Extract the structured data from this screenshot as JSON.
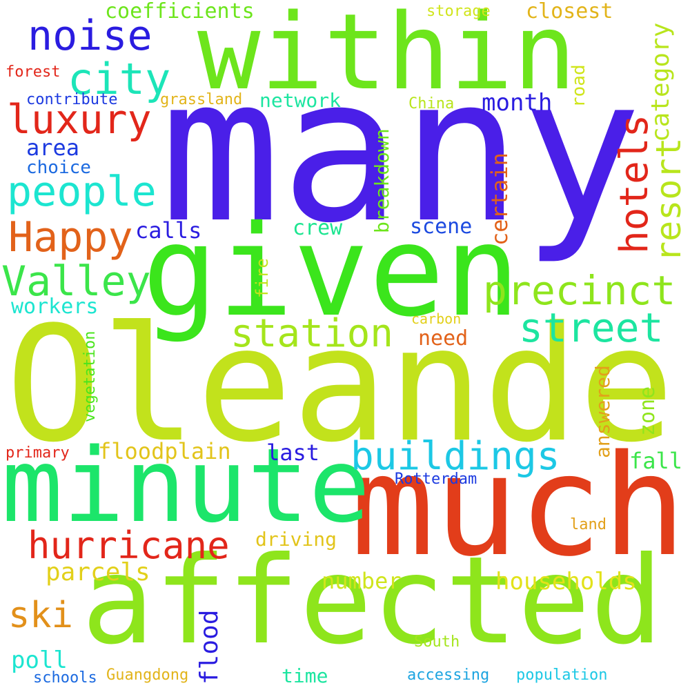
{
  "words": [
    {
      "text": "many",
      "color": "#4a1fe8",
      "orientation": "horizontal"
    },
    {
      "text": "Oleander",
      "color": "#c2e21c",
      "orientation": "horizontal"
    },
    {
      "text": "affected",
      "color": "#8ee51c",
      "orientation": "horizontal"
    },
    {
      "text": "much",
      "color": "#e23d1a",
      "orientation": "horizontal"
    },
    {
      "text": "within",
      "color": "#6de51c",
      "orientation": "horizontal"
    },
    {
      "text": "given",
      "color": "#3be51c",
      "orientation": "horizontal"
    },
    {
      "text": "minute",
      "color": "#1ce56a",
      "orientation": "horizontal"
    },
    {
      "text": "noise",
      "color": "#2a1ce0",
      "orientation": "horizontal"
    },
    {
      "text": "luxury",
      "color": "#e2261a",
      "orientation": "horizontal"
    },
    {
      "text": "city",
      "color": "#1ce5b8",
      "orientation": "horizontal"
    },
    {
      "text": "people",
      "color": "#1ce5d0",
      "orientation": "horizontal"
    },
    {
      "text": "Happy",
      "color": "#e2621a",
      "orientation": "horizontal"
    },
    {
      "text": "Valley",
      "color": "#3be54a",
      "orientation": "horizontal"
    },
    {
      "text": "hotels",
      "color": "#e2261a",
      "orientation": "vertical"
    },
    {
      "text": "resort",
      "color": "#b8e51c",
      "orientation": "vertical"
    },
    {
      "text": "precinct",
      "color": "#8ee51c",
      "orientation": "horizontal"
    },
    {
      "text": "station",
      "color": "#a4e51c",
      "orientation": "horizontal"
    },
    {
      "text": "street",
      "color": "#1ce5a0",
      "orientation": "horizontal"
    },
    {
      "text": "buildings",
      "color": "#1cc8e5",
      "orientation": "horizontal"
    },
    {
      "text": "hurricane",
      "color": "#e2261a",
      "orientation": "horizontal"
    },
    {
      "text": "category",
      "color": "#b8e51c",
      "orientation": "vertical"
    },
    {
      "text": "coefficients",
      "color": "#6de51c",
      "orientation": "horizontal"
    },
    {
      "text": "closest",
      "color": "#e2b41a",
      "orientation": "horizontal"
    },
    {
      "text": "storage",
      "color": "#d0e51c",
      "orientation": "horizontal"
    },
    {
      "text": "forest",
      "color": "#e2261a",
      "orientation": "horizontal"
    },
    {
      "text": "contribute",
      "color": "#1c3ae0",
      "orientation": "horizontal"
    },
    {
      "text": "grassland",
      "color": "#e2b41a",
      "orientation": "horizontal"
    },
    {
      "text": "network",
      "color": "#1ce5a0",
      "orientation": "horizontal"
    },
    {
      "text": "China",
      "color": "#b8e51c",
      "orientation": "horizontal"
    },
    {
      "text": "month",
      "color": "#2a1ce0",
      "orientation": "horizontal"
    },
    {
      "text": "road",
      "color": "#d0e51c",
      "orientation": "vertical"
    },
    {
      "text": "area",
      "color": "#1c3ae0",
      "orientation": "horizontal"
    },
    {
      "text": "choice",
      "color": "#1c6ae0",
      "orientation": "horizontal"
    },
    {
      "text": "breakdown",
      "color": "#6de51c",
      "orientation": "vertical"
    },
    {
      "text": "certain",
      "color": "#e2621a",
      "orientation": "vertical"
    },
    {
      "text": "calls",
      "color": "#2a1ce0",
      "orientation": "horizontal"
    },
    {
      "text": "crew",
      "color": "#1ce590",
      "orientation": "horizontal"
    },
    {
      "text": "scene",
      "color": "#1c4ae0",
      "orientation": "horizontal"
    },
    {
      "text": "workers",
      "color": "#1ce5d0",
      "orientation": "horizontal"
    },
    {
      "text": "fire",
      "color": "#c2e21c",
      "orientation": "vertical"
    },
    {
      "text": "carbon",
      "color": "#e2d01a",
      "orientation": "horizontal"
    },
    {
      "text": "need",
      "color": "#e2621a",
      "orientation": "horizontal"
    },
    {
      "text": "vegetation",
      "color": "#4ae51c",
      "orientation": "vertical"
    },
    {
      "text": "answered",
      "color": "#e2a01a",
      "orientation": "vertical"
    },
    {
      "text": "zone",
      "color": "#90e51c",
      "orientation": "vertical"
    },
    {
      "text": "floodplain",
      "color": "#e2c41a",
      "orientation": "horizontal"
    },
    {
      "text": "last",
      "color": "#2a1ce0",
      "orientation": "horizontal"
    },
    {
      "text": "fall",
      "color": "#3be54a",
      "orientation": "horizontal"
    },
    {
      "text": "primary",
      "color": "#e2261a",
      "orientation": "horizontal"
    },
    {
      "text": "Rotterdam",
      "color": "#1c3ae0",
      "orientation": "horizontal"
    },
    {
      "text": "land",
      "color": "#e2a01a",
      "orientation": "horizontal"
    },
    {
      "text": "driving",
      "color": "#e2c41a",
      "orientation": "horizontal"
    },
    {
      "text": "parcels",
      "color": "#e2d01a",
      "orientation": "horizontal"
    },
    {
      "text": "number",
      "color": "#d0e51c",
      "orientation": "horizontal"
    },
    {
      "text": "households",
      "color": "#e2e21a",
      "orientation": "horizontal"
    },
    {
      "text": "ski",
      "color": "#e2901a",
      "orientation": "horizontal"
    },
    {
      "text": "flood",
      "color": "#2a1ce0",
      "orientation": "vertical"
    },
    {
      "text": "poll",
      "color": "#1ce5d0",
      "orientation": "horizontal"
    },
    {
      "text": "South",
      "color": "#a4e51c",
      "orientation": "horizontal"
    },
    {
      "text": "time",
      "color": "#1ce5a0",
      "orientation": "horizontal"
    },
    {
      "text": "accessing",
      "color": "#1ca4e0",
      "orientation": "horizontal"
    },
    {
      "text": "population",
      "color": "#1cc8e5",
      "orientation": "horizontal"
    },
    {
      "text": "schools",
      "color": "#1c6ae0",
      "orientation": "horizontal"
    },
    {
      "text": "Guangdong",
      "color": "#e2b41a",
      "orientation": "horizontal"
    }
  ]
}
